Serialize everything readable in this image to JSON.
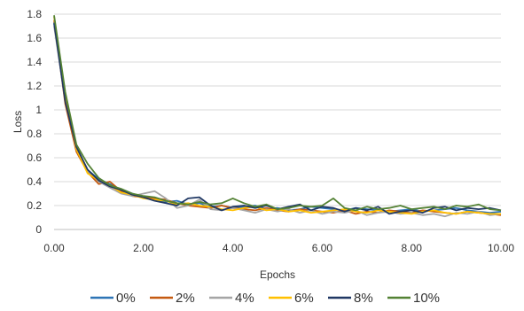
{
  "chart_data": {
    "type": "line",
    "title": "",
    "xlabel": "Epochs",
    "ylabel": "Loss",
    "xlim": [
      0,
      10
    ],
    "ylim": [
      0,
      1.8
    ],
    "x_ticks": [
      "0.00",
      "2.00",
      "4.00",
      "6.00",
      "8.00",
      "10.00"
    ],
    "y_ticks": [
      "0",
      "0.2",
      "0.4",
      "0.6",
      "0.8",
      "1",
      "1.2",
      "1.4",
      "1.6",
      "1.8"
    ],
    "grid": "horizontal",
    "legend_position": "bottom",
    "x": [
      0,
      0.25,
      0.5,
      0.75,
      1,
      1.25,
      1.5,
      1.75,
      2,
      2.25,
      2.5,
      2.75,
      3,
      3.25,
      3.5,
      3.75,
      4,
      4.25,
      4.5,
      4.75,
      5,
      5.25,
      5.5,
      5.75,
      6,
      6.25,
      6.5,
      6.75,
      7,
      7.25,
      7.5,
      7.75,
      8,
      8.25,
      8.5,
      8.75,
      9,
      9.25,
      9.5,
      9.75,
      10
    ],
    "series": [
      {
        "name": "0%",
        "color": "#2e75b6",
        "values": [
          1.72,
          1.1,
          0.68,
          0.5,
          0.42,
          0.38,
          0.33,
          0.3,
          0.27,
          0.25,
          0.23,
          0.24,
          0.21,
          0.22,
          0.19,
          0.2,
          0.18,
          0.19,
          0.2,
          0.17,
          0.18,
          0.16,
          0.17,
          0.19,
          0.18,
          0.17,
          0.16,
          0.18,
          0.17,
          0.16,
          0.15,
          0.16,
          0.17,
          0.15,
          0.16,
          0.17,
          0.18,
          0.16,
          0.15,
          0.14,
          0.15
        ]
      },
      {
        "name": "2%",
        "color": "#c55a11",
        "values": [
          1.75,
          1.05,
          0.65,
          0.48,
          0.38,
          0.4,
          0.32,
          0.28,
          0.27,
          0.26,
          0.25,
          0.22,
          0.2,
          0.19,
          0.18,
          0.2,
          0.18,
          0.17,
          0.16,
          0.18,
          0.16,
          0.15,
          0.17,
          0.16,
          0.15,
          0.14,
          0.16,
          0.13,
          0.15,
          0.14,
          0.16,
          0.15,
          0.14,
          0.16,
          0.15,
          0.14,
          0.13,
          0.15,
          0.14,
          0.13,
          0.12
        ]
      },
      {
        "name": "4%",
        "color": "#a5a5a5",
        "values": [
          1.7,
          1.08,
          0.7,
          0.49,
          0.4,
          0.35,
          0.3,
          0.28,
          0.3,
          0.32,
          0.26,
          0.18,
          0.2,
          0.25,
          0.17,
          0.16,
          0.18,
          0.16,
          0.14,
          0.17,
          0.15,
          0.17,
          0.14,
          0.16,
          0.13,
          0.15,
          0.14,
          0.16,
          0.12,
          0.14,
          0.15,
          0.13,
          0.14,
          0.12,
          0.13,
          0.11,
          0.14,
          0.13,
          0.15,
          0.12,
          0.13
        ]
      },
      {
        "name": "6%",
        "color": "#ffc000",
        "values": [
          1.78,
          1.12,
          0.67,
          0.47,
          0.41,
          0.37,
          0.31,
          0.29,
          0.26,
          0.25,
          0.24,
          0.21,
          0.22,
          0.2,
          0.19,
          0.17,
          0.16,
          0.18,
          0.19,
          0.16,
          0.17,
          0.15,
          0.16,
          0.14,
          0.15,
          0.16,
          0.17,
          0.15,
          0.14,
          0.16,
          0.15,
          0.14,
          0.13,
          0.15,
          0.16,
          0.14,
          0.13,
          0.15,
          0.14,
          0.13,
          0.13
        ]
      },
      {
        "name": "8%",
        "color": "#203864",
        "values": [
          1.73,
          1.07,
          0.69,
          0.5,
          0.41,
          0.36,
          0.33,
          0.29,
          0.27,
          0.24,
          0.22,
          0.2,
          0.26,
          0.27,
          0.2,
          0.16,
          0.19,
          0.2,
          0.18,
          0.2,
          0.17,
          0.19,
          0.21,
          0.16,
          0.19,
          0.18,
          0.15,
          0.18,
          0.16,
          0.19,
          0.13,
          0.15,
          0.16,
          0.14,
          0.18,
          0.19,
          0.16,
          0.18,
          0.17,
          0.18,
          0.16
        ]
      },
      {
        "name": "10%",
        "color": "#548235",
        "values": [
          1.79,
          1.15,
          0.71,
          0.55,
          0.43,
          0.37,
          0.34,
          0.3,
          0.28,
          0.27,
          0.24,
          0.22,
          0.21,
          0.23,
          0.21,
          0.22,
          0.26,
          0.22,
          0.19,
          0.21,
          0.17,
          0.18,
          0.2,
          0.19,
          0.2,
          0.26,
          0.18,
          0.16,
          0.19,
          0.17,
          0.18,
          0.2,
          0.17,
          0.18,
          0.19,
          0.17,
          0.2,
          0.19,
          0.21,
          0.17,
          0.16
        ]
      }
    ]
  }
}
